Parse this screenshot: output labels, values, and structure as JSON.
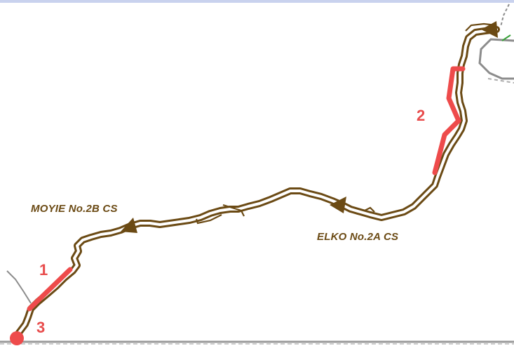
{
  "map": {
    "stations": [
      {
        "id": "moyie",
        "label": "MOYIE No.2B CS"
      },
      {
        "id": "elko",
        "label": "ELKO No.2A CS"
      }
    ],
    "segments": [
      {
        "id": "seg1",
        "label": "1"
      },
      {
        "id": "seg2",
        "label": "2"
      },
      {
        "id": "seg3",
        "label": "3"
      }
    ],
    "colors": {
      "pipeline_outline": "#6b4a14",
      "pipeline_core": "#ffffff",
      "highlight_segment": "#ee4b4b",
      "label_brown": "#6b4a14",
      "label_red": "#e84c4c",
      "road_gray": "#8c8c8c",
      "top_band": "#c9d2ee"
    },
    "icons": [
      "flow-direction-arrow-icon",
      "location-marker-icon"
    ]
  }
}
